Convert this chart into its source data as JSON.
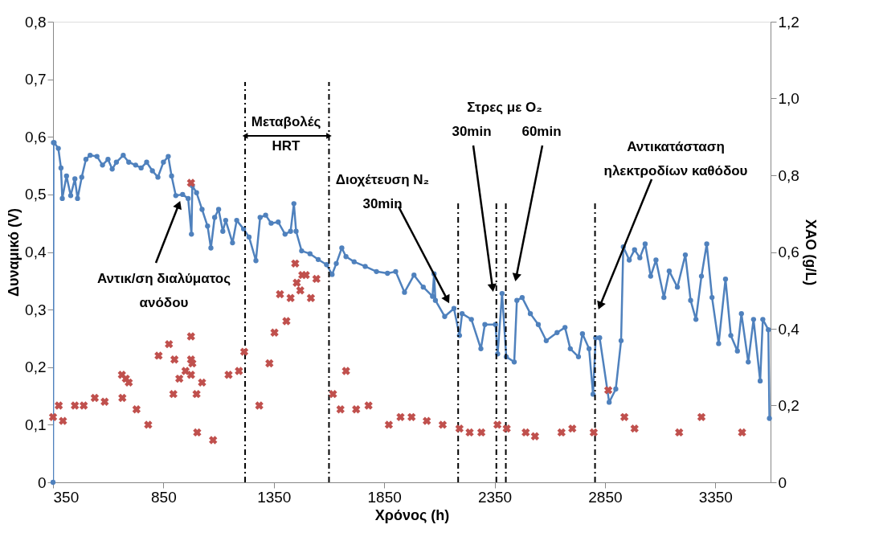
{
  "chart_data": {
    "type": "line",
    "xlabel": "Χρόνος (h)",
    "ylabel": "Δυναμικό (V)",
    "y2label": "ΧΑΟ (g/L)",
    "xlim": [
      350,
      3600
    ],
    "xticks": [
      350,
      850,
      1350,
      1850,
      2350,
      2850,
      3350
    ],
    "marker": "circle",
    "ylim": [
      0,
      0.8
    ],
    "yticks": [
      0,
      {
        "value": 0.1,
        "label": "0,1"
      },
      {
        "value": 0.2,
        "label": "0,2"
      },
      {
        "value": 0.3,
        "label": "0,3"
      },
      {
        "value": 0.4,
        "label": "0,4"
      },
      {
        "value": 0.5,
        "label": "0,5"
      },
      {
        "value": 0.6,
        "label": "0,6"
      },
      {
        "value": 0.7,
        "label": "0,7"
      },
      {
        "value": 0.8,
        "label": "0,8"
      }
    ],
    "y2lim": [
      0,
      1.2
    ],
    "y2ticks": [
      0,
      {
        "value": 0.2,
        "label": "0,2"
      },
      {
        "value": 0.4,
        "label": "0,4"
      },
      {
        "value": 0.6,
        "label": "0,6"
      },
      {
        "value": 0.8,
        "label": "0,8"
      },
      {
        "value": 1.0,
        "label": "1,0"
      },
      {
        "value": 1.2,
        "label": "1,2"
      }
    ],
    "grid": false,
    "series": [
      {
        "color": "#4f81bd",
        "x": [
          350,
          352,
          355,
          374,
          386,
          392,
          411,
          430,
          449,
          461,
          480,
          499,
          518,
          549,
          574,
          599,
          618,
          637,
          668,
          693,
          724,
          749,
          774,
          800,
          825,
          850,
          872,
          887,
          906,
          937,
          962,
          977,
          981,
          1000,
          1025,
          1050,
          1065,
          1082,
          1100,
          1119,
          1132,
          1163,
          1182,
          1213,
          1238,
          1269,
          1288,
          1313,
          1338,
          1370,
          1401,
          1426,
          1441,
          1451,
          1476,
          1514,
          1551,
          1589,
          1614,
          1633,
          1658,
          1677,
          1714,
          1764,
          1815,
          1865,
          1902,
          1942,
          1985,
          2027,
          2069,
          2076,
          2082,
          2124,
          2166,
          2191,
          2203,
          2245,
          2288,
          2306,
          2354,
          2364,
          2384,
          2403,
          2439,
          2451,
          2475,
          2512,
          2548,
          2584,
          2633,
          2669,
          2693,
          2730,
          2748,
          2778,
          2796,
          2808,
          2826,
          2869,
          2899,
          2923,
          2933,
          2960,
          2984,
          3008,
          3032,
          3057,
          3081,
          3117,
          3141,
          3178,
          3214,
          3238,
          3262,
          3287,
          3311,
          3335,
          3365,
          3396,
          3420,
          3450,
          3468,
          3499,
          3523,
          3553,
          3565,
          3590,
          3595
        ],
        "values": [
          0.0,
          0.59,
          0.59,
          0.58,
          0.546,
          0.493,
          0.532,
          0.498,
          0.527,
          0.493,
          0.53,
          0.561,
          0.568,
          0.566,
          0.551,
          0.561,
          0.544,
          0.556,
          0.568,
          0.556,
          0.551,
          0.546,
          0.556,
          0.541,
          0.53,
          0.556,
          0.566,
          0.532,
          0.498,
          0.5,
          0.493,
          0.431,
          0.515,
          0.503,
          0.474,
          0.445,
          0.407,
          0.46,
          0.474,
          0.436,
          0.455,
          0.416,
          0.455,
          0.44,
          0.426,
          0.385,
          0.46,
          0.464,
          0.45,
          0.452,
          0.431,
          0.436,
          0.484,
          0.436,
          0.402,
          0.397,
          0.387,
          0.378,
          0.361,
          0.38,
          0.407,
          0.392,
          0.383,
          0.375,
          0.366,
          0.363,
          0.366,
          0.33,
          0.36,
          0.339,
          0.323,
          0.362,
          0.316,
          0.288,
          0.302,
          0.255,
          0.293,
          0.283,
          0.232,
          0.274,
          0.274,
          0.223,
          0.328,
          0.218,
          0.209,
          0.316,
          0.321,
          0.293,
          0.274,
          0.246,
          0.26,
          0.269,
          0.232,
          0.218,
          0.258,
          0.232,
          0.153,
          0.251,
          0.251,
          0.139,
          0.162,
          0.246,
          0.409,
          0.386,
          0.404,
          0.39,
          0.414,
          0.358,
          0.386,
          0.321,
          0.367,
          0.339,
          0.395,
          0.316,
          0.283,
          0.358,
          0.414,
          0.321,
          0.241,
          0.353,
          0.255,
          0.228,
          0.293,
          0.209,
          0.283,
          0.176,
          0.283,
          0.265,
          0.111
        ]
      },
      {
        "type": "scatter",
        "axis": "y2",
        "color": "#c0504d",
        "marker": "cross",
        "x": [
          350,
          376,
          395,
          449,
          489,
          539,
          584,
          662,
          664,
          680,
          693,
          728,
          781,
          828,
          875,
          895,
          900,
          922,
          950,
          975,
          975,
          975,
          975,
          981,
          1000,
          1003,
          1025,
          1075,
          1145,
          1192,
          1216,
          1284,
          1330,
          1353,
          1378,
          1407,
          1426,
          1447,
          1454,
          1470,
          1479,
          1495,
          1518,
          1543,
          1618,
          1652,
          1677,
          1723,
          1779,
          1871,
          1924,
          1974,
          2043,
          2115,
          2191,
          2237,
          2290,
          2363,
          2405,
          2491,
          2533,
          2653,
          2702,
          2799,
          2865,
          2938,
          2984,
          3186,
          3287,
          3471
        ],
        "values": [
          0.17,
          0.2,
          0.16,
          0.2,
          0.2,
          0.22,
          0.21,
          0.28,
          0.22,
          0.27,
          0.26,
          0.19,
          0.15,
          0.33,
          0.36,
          0.23,
          0.32,
          0.27,
          0.29,
          0.78,
          0.38,
          0.32,
          0.28,
          0.31,
          0.23,
          0.13,
          0.26,
          0.11,
          0.28,
          0.29,
          0.34,
          0.2,
          0.31,
          0.39,
          0.49,
          0.42,
          0.48,
          0.57,
          0.52,
          0.5,
          0.54,
          0.54,
          0.48,
          0.53,
          0.23,
          0.19,
          0.29,
          0.19,
          0.2,
          0.15,
          0.17,
          0.17,
          0.16,
          0.15,
          0.14,
          0.13,
          0.13,
          0.15,
          0.14,
          0.13,
          0.12,
          0.13,
          0.14,
          0.13,
          0.24,
          0.17,
          0.14,
          0.13,
          0.17,
          0.13
        ]
      }
    ],
    "ref_lines": [
      {
        "axis": "x",
        "value": 1220,
        "line_style": "dashed",
        "color": "#000000"
      },
      {
        "axis": "x",
        "value": 1600,
        "line_style": "dashed",
        "color": "#000000"
      },
      {
        "axis": "x",
        "value": 2185,
        "line_style": "dashed",
        "color": "#000000"
      },
      {
        "axis": "x",
        "value": 2358,
        "line_style": "dashed",
        "color": "#000000"
      },
      {
        "axis": "x",
        "value": 2401,
        "line_style": "dashed",
        "color": "#000000"
      },
      {
        "axis": "x",
        "value": 2805,
        "line_style": "dashed",
        "color": "#000000"
      }
    ],
    "annotations": [
      "Αντικ/ση διαλύματος\nανόδου",
      "Διοχέτευση N₂\n30min",
      "Στρες με O₂",
      "30min",
      "60min",
      "Αντικατάσταση\nηλεκτροδίων καθόδου",
      "Μεταβολές\nHRT"
    ]
  }
}
